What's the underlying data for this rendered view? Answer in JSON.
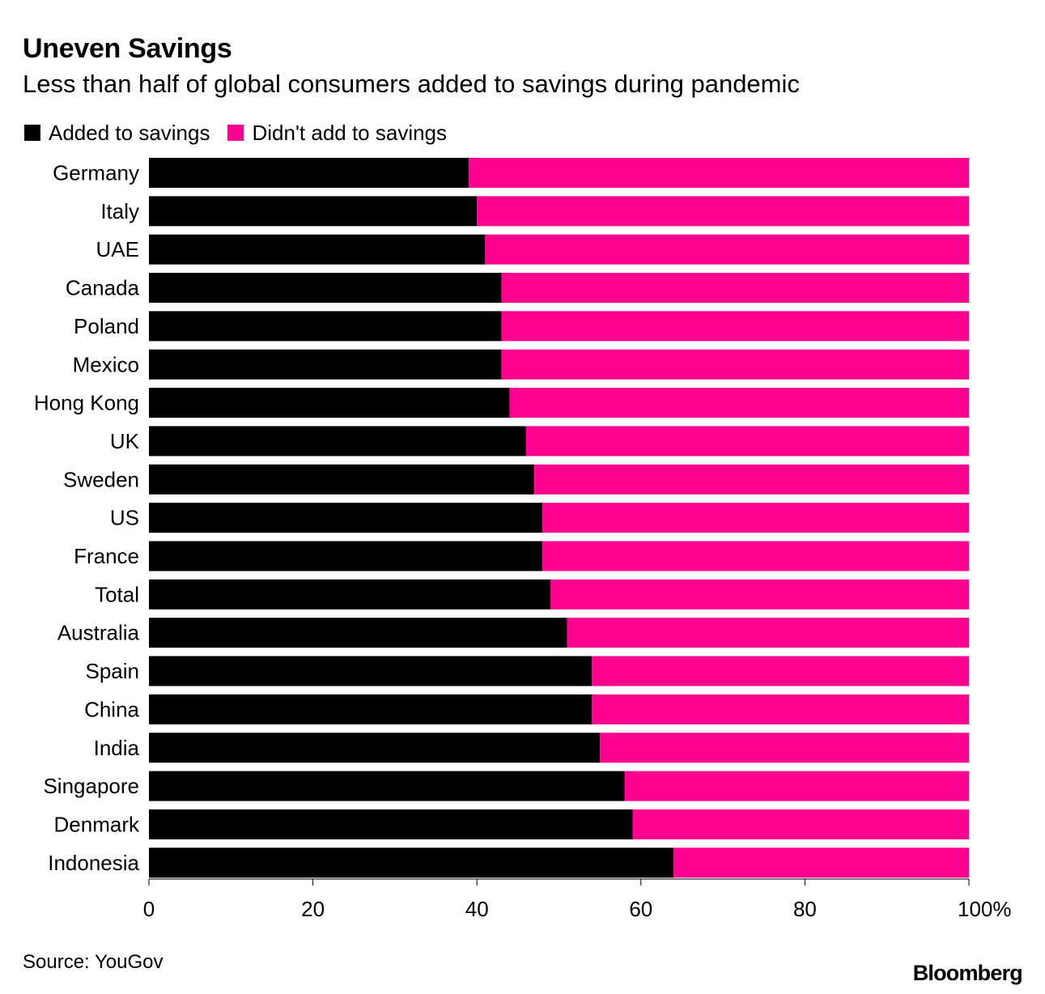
{
  "header": {
    "title": "Uneven Savings",
    "subtitle": "Less than half of global consumers added to savings during pandemic"
  },
  "footer": {
    "source": "Source: YouGov",
    "brand": "Bloomberg"
  },
  "colors": {
    "added": "#000000",
    "not_added": "#ff0090"
  },
  "chart_data": {
    "type": "bar",
    "orientation": "horizontal",
    "stacked": true,
    "title": "Uneven Savings",
    "subtitle": "Less than half of global consumers added to savings during pandemic",
    "categories": [
      "Germany",
      "Italy",
      "UAE",
      "Canada",
      "Poland",
      "Mexico",
      "Hong Kong",
      "UK",
      "Sweden",
      "US",
      "France",
      "Total",
      "Australia",
      "Spain",
      "China",
      "India",
      "Singapore",
      "Denmark",
      "Indonesia"
    ],
    "series": [
      {
        "name": "Added to savings",
        "color": "#000000",
        "values": [
          39,
          40,
          41,
          43,
          43,
          43,
          44,
          46,
          47,
          48,
          48,
          49,
          51,
          54,
          54,
          55,
          58,
          59,
          64
        ]
      },
      {
        "name": "Didn't add to savings",
        "color": "#ff0090",
        "values": [
          61,
          60,
          59,
          57,
          57,
          57,
          56,
          54,
          53,
          52,
          52,
          51,
          49,
          46,
          46,
          45,
          42,
          41,
          36
        ]
      }
    ],
    "xlim": [
      0,
      100
    ],
    "xticks": [
      "0",
      "20",
      "40",
      "60",
      "80",
      "100%"
    ],
    "legend_position": "top-left",
    "grid": false
  }
}
